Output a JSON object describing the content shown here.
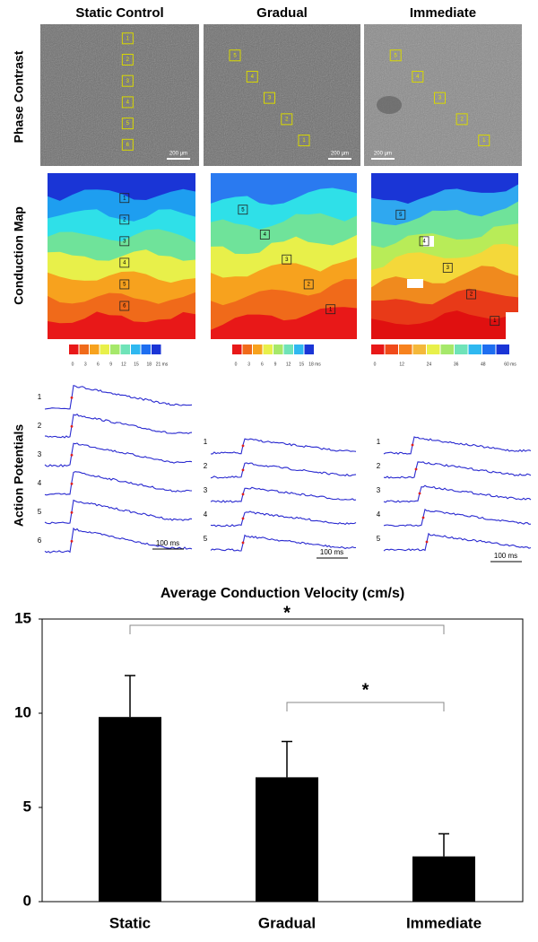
{
  "figure": {
    "columns": [
      "Static Control",
      "Gradual",
      "Immediate"
    ],
    "row_labels": [
      "Phase Contrast",
      "Conduction Map",
      "Action Potentials"
    ],
    "phase_contrast": [
      {
        "markers": [
          "1",
          "2",
          "3",
          "4",
          "5",
          "6"
        ],
        "scale_bar": "200 μm"
      },
      {
        "markers": [
          "5",
          "4",
          "3",
          "2",
          "1"
        ],
        "scale_bar": "200 μm"
      },
      {
        "markers": [
          "5",
          "4",
          "3",
          "2",
          "1"
        ],
        "scale_bar": "200 μm"
      }
    ],
    "conduction_map": [
      {
        "markers": [
          "1",
          "2",
          "3",
          "4",
          "5",
          "6"
        ],
        "colorbar": [
          "0",
          "3",
          "6",
          "9",
          "12",
          "15",
          "18",
          "21 ms"
        ]
      },
      {
        "markers": [
          "5",
          "4",
          "3",
          "2",
          "1"
        ],
        "colorbar": [
          "0",
          "3",
          "6",
          "9",
          "12",
          "15",
          "18 ms"
        ]
      },
      {
        "markers": [
          "5",
          "4",
          "3",
          "2",
          "1"
        ],
        "colorbar": [
          "0",
          "12",
          "24",
          "36",
          "48",
          "60 ms"
        ]
      }
    ],
    "action_potentials": [
      {
        "traces": [
          "1",
          "2",
          "3",
          "4",
          "5",
          "6"
        ],
        "scale_bar": "100 ms"
      },
      {
        "traces": [
          "1",
          "2",
          "3",
          "4",
          "5"
        ],
        "scale_bar": "100 ms"
      },
      {
        "traces": [
          "1",
          "2",
          "3",
          "4",
          "5"
        ],
        "scale_bar": "100 ms"
      }
    ]
  },
  "chart_data": {
    "type": "bar",
    "title": "Average Conduction Velocity (cm/s)",
    "categories": [
      "Static",
      "Gradual",
      "Immediate"
    ],
    "values": [
      9.8,
      6.6,
      2.4
    ],
    "errors": [
      2.2,
      1.9,
      1.2
    ],
    "color": "#000000",
    "ylim": [
      0,
      15
    ],
    "yticks": [
      0,
      5,
      10,
      15
    ],
    "grid": false,
    "significance": [
      {
        "label": "*",
        "from": "Static",
        "to": "Immediate"
      },
      {
        "label": "*",
        "from": "Gradual",
        "to": "Immediate"
      }
    ]
  }
}
